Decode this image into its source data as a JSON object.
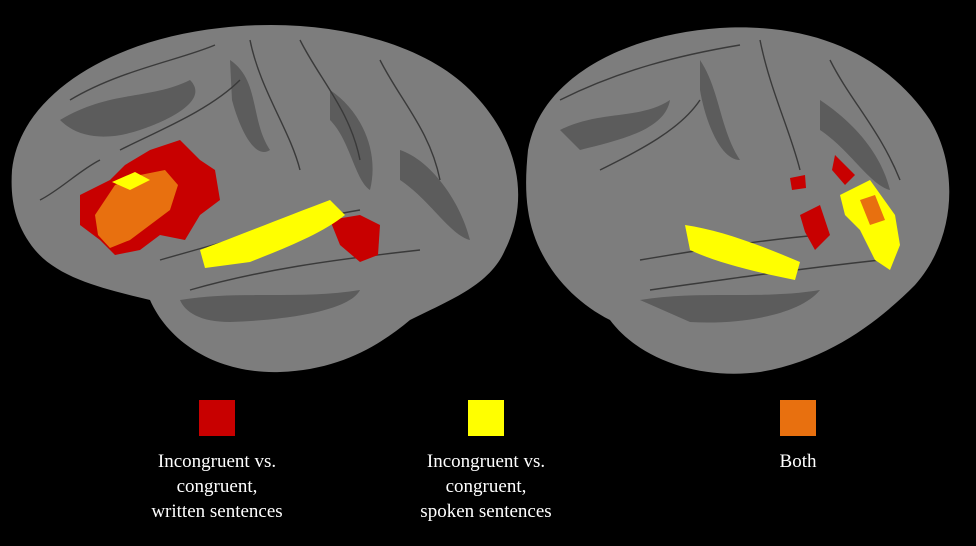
{
  "legend": [
    {
      "color": "#c80000",
      "lines": [
        "Incongruent vs.",
        "congruent,",
        "written sentences"
      ]
    },
    {
      "color": "#ffff00",
      "lines": [
        "Incongruent vs.",
        "congruent,",
        "spoken sentences"
      ]
    },
    {
      "color": "#e8700f",
      "lines": [
        "Both"
      ]
    }
  ]
}
